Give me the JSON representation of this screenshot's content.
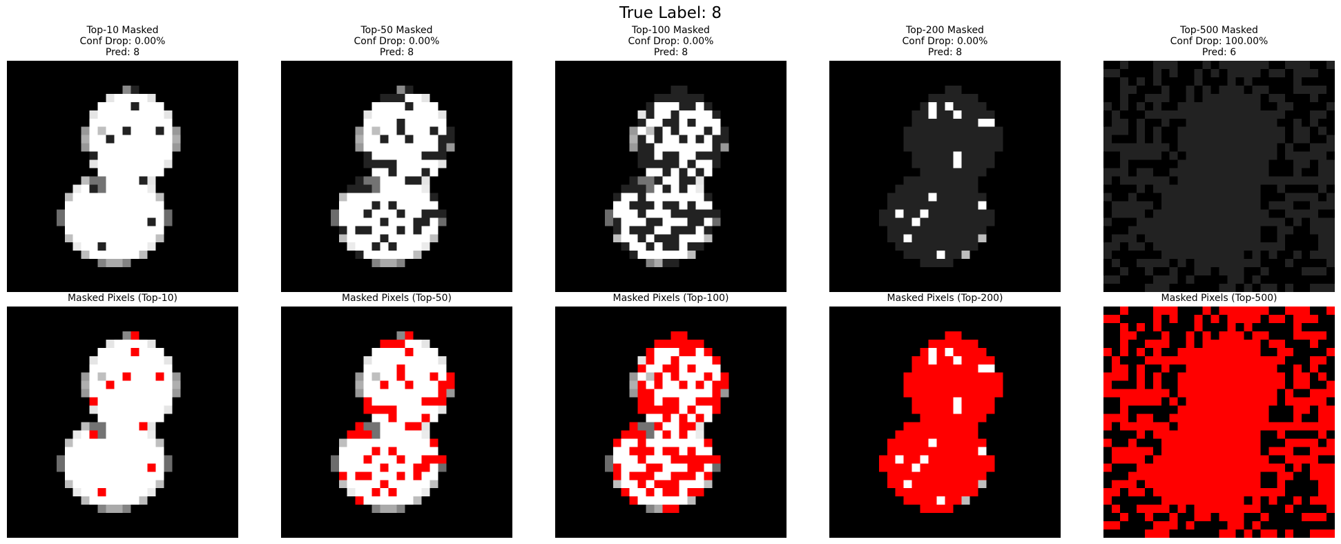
{
  "figure": {
    "suptitle": "True Label: 8"
  },
  "chart_data": [
    {
      "type": "heatmap",
      "panel": "masked-image",
      "k": 10,
      "title": "Top-10 Masked",
      "conf_drop": "Conf Drop: 0.00%",
      "pred": "Pred: 8",
      "overlay_caption": "Masked Pixels (Top-10)",
      "grid": [
        28,
        28
      ]
    },
    {
      "type": "heatmap",
      "panel": "masked-image",
      "k": 50,
      "title": "Top-50 Masked",
      "conf_drop": "Conf Drop: 0.00%",
      "pred": "Pred: 8",
      "overlay_caption": "Masked Pixels (Top-50)",
      "grid": [
        28,
        28
      ]
    },
    {
      "type": "heatmap",
      "panel": "masked-image",
      "k": 100,
      "title": "Top-100 Masked",
      "conf_drop": "Conf Drop: 0.00%",
      "pred": "Pred: 8",
      "overlay_caption": "Masked Pixels (Top-100)",
      "grid": [
        28,
        28
      ]
    },
    {
      "type": "heatmap",
      "panel": "masked-image",
      "k": 200,
      "title": "Top-200 Masked",
      "conf_drop": "Conf Drop: 0.00%",
      "pred": "Pred: 8",
      "overlay_caption": "Masked Pixels (Top-200)",
      "grid": [
        28,
        28
      ]
    },
    {
      "type": "heatmap",
      "panel": "masked-image",
      "k": 500,
      "title": "Top-500 Masked",
      "conf_drop": "Conf Drop: 100.00%",
      "pred": "Pred: 6",
      "overlay_caption": "Masked Pixels (Top-500)",
      "grid": [
        28,
        28
      ]
    }
  ],
  "colors": {
    "background": "#000000",
    "digit": "#ffffff",
    "masked_fill": "#222222",
    "mask_overlay": "#ff0000"
  }
}
